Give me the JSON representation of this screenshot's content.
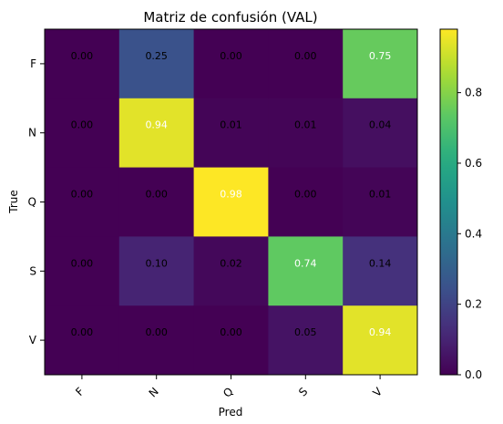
{
  "chart_data": {
    "type": "heatmap",
    "title": "Matriz de confusión (VAL)",
    "xlabel": "Pred",
    "ylabel": "True",
    "x_categories": [
      "F",
      "N",
      "Q",
      "S",
      "V"
    ],
    "y_categories": [
      "F",
      "N",
      "Q",
      "S",
      "V"
    ],
    "values": [
      [
        0.0,
        0.25,
        0.0,
        0.0,
        0.75
      ],
      [
        0.0,
        0.94,
        0.01,
        0.01,
        0.04
      ],
      [
        0.0,
        0.0,
        0.98,
        0.0,
        0.01
      ],
      [
        0.0,
        0.1,
        0.02,
        0.74,
        0.14
      ],
      [
        0.0,
        0.0,
        0.0,
        0.05,
        0.94
      ]
    ],
    "value_labels": [
      [
        "0.00",
        "0.25",
        "0.00",
        "0.00",
        "0.75"
      ],
      [
        "0.00",
        "0.94",
        "0.01",
        "0.01",
        "0.04"
      ],
      [
        "0.00",
        "0.00",
        "0.98",
        "0.00",
        "0.01"
      ],
      [
        "0.00",
        "0.10",
        "0.02",
        "0.74",
        "0.14"
      ],
      [
        "0.00",
        "0.00",
        "0.00",
        "0.05",
        "0.94"
      ]
    ],
    "colorscale": "viridis",
    "clim": [
      0,
      0.98
    ],
    "colorbar_ticks": [
      "0.0",
      "0.2",
      "0.4",
      "0.6",
      "0.8"
    ],
    "colorbar_tick_values": [
      0,
      0.2,
      0.4,
      0.6,
      0.8
    ]
  }
}
